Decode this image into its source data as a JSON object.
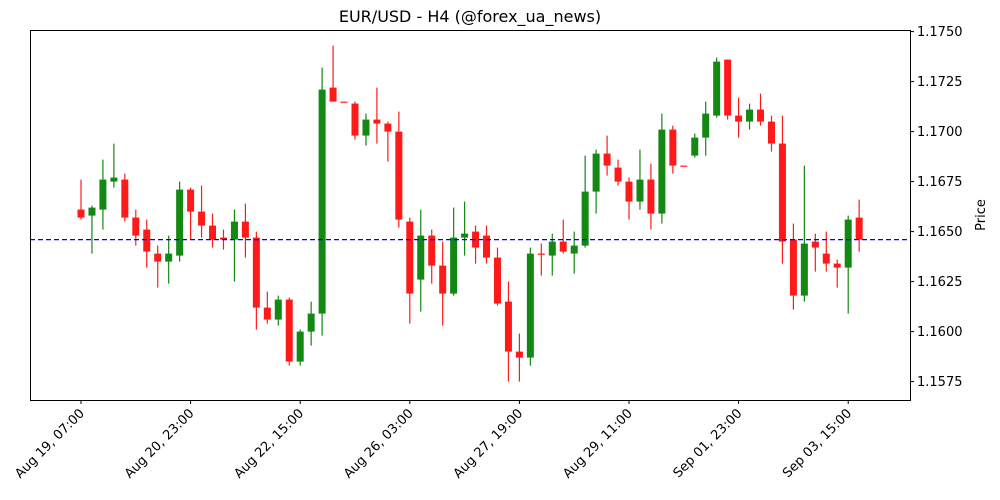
{
  "chart_data": {
    "type": "candlestick",
    "title": "EUR/USD - H4 (@forex_ua_news)",
    "xlabel": "",
    "ylabel": "Price",
    "ylim": [
      1.15658,
      1.17508
    ],
    "y_axis_position": "right",
    "y_ticks": [
      1.1575,
      1.16,
      1.1625,
      1.165,
      1.1675,
      1.17,
      1.1725,
      1.175
    ],
    "y_tick_labels": [
      "1.1575",
      "1.1600",
      "1.1625",
      "1.1650",
      "1.1675",
      "1.1700",
      "1.1725",
      "1.1750"
    ],
    "x_ticks": [
      {
        "index": 0,
        "label": "Aug 19, 07:00"
      },
      {
        "index": 10,
        "label": "Aug 20, 23:00"
      },
      {
        "index": 20,
        "label": "Aug 22, 15:00"
      },
      {
        "index": 30,
        "label": "Aug 26, 03:00"
      },
      {
        "index": 40,
        "label": "Aug 27, 19:00"
      },
      {
        "index": 50,
        "label": "Aug 29, 11:00"
      },
      {
        "index": 60,
        "label": "Sep 01, 23:00"
      },
      {
        "index": 70,
        "label": "Sep 03, 15:00"
      }
    ],
    "grid": false,
    "legend": null,
    "colors": {
      "up": "#138813",
      "down": "#ff1a1a",
      "reference_line": "#0000ff"
    },
    "reference_line": {
      "value": 1.1646,
      "style": "dashed",
      "color": "#0000ff"
    },
    "candles": [
      {
        "o": 1.1661,
        "h": 1.1676,
        "l": 1.1656,
        "c": 1.1657
      },
      {
        "o": 1.1658,
        "h": 1.1663,
        "l": 1.1639,
        "c": 1.1662
      },
      {
        "o": 1.1661,
        "h": 1.1686,
        "l": 1.1651,
        "c": 1.1676
      },
      {
        "o": 1.1675,
        "h": 1.1694,
        "l": 1.1672,
        "c": 1.1677
      },
      {
        "o": 1.1676,
        "h": 1.1679,
        "l": 1.1655,
        "c": 1.1657
      },
      {
        "o": 1.1657,
        "h": 1.1661,
        "l": 1.1643,
        "c": 1.1648
      },
      {
        "o": 1.1651,
        "h": 1.1656,
        "l": 1.1632,
        "c": 1.164
      },
      {
        "o": 1.1639,
        "h": 1.1643,
        "l": 1.1622,
        "c": 1.1635
      },
      {
        "o": 1.1635,
        "h": 1.1648,
        "l": 1.1624,
        "c": 1.1639
      },
      {
        "o": 1.1638,
        "h": 1.1675,
        "l": 1.1635,
        "c": 1.1671
      },
      {
        "o": 1.1671,
        "h": 1.1672,
        "l": 1.1646,
        "c": 1.166
      },
      {
        "o": 1.166,
        "h": 1.1673,
        "l": 1.1647,
        "c": 1.1653
      },
      {
        "o": 1.1653,
        "h": 1.1659,
        "l": 1.1642,
        "c": 1.1646
      },
      {
        "o": 1.1647,
        "h": 1.1651,
        "l": 1.1641,
        "c": 1.1646
      },
      {
        "o": 1.1646,
        "h": 1.1661,
        "l": 1.1625,
        "c": 1.1655
      },
      {
        "o": 1.1655,
        "h": 1.1664,
        "l": 1.1637,
        "c": 1.1647
      },
      {
        "o": 1.1647,
        "h": 1.165,
        "l": 1.1601,
        "c": 1.1612
      },
      {
        "o": 1.1612,
        "h": 1.162,
        "l": 1.1604,
        "c": 1.1606
      },
      {
        "o": 1.1606,
        "h": 1.1618,
        "l": 1.1603,
        "c": 1.1616
      },
      {
        "o": 1.1616,
        "h": 1.1617,
        "l": 1.1583,
        "c": 1.1585
      },
      {
        "o": 1.1585,
        "h": 1.1601,
        "l": 1.1583,
        "c": 1.16
      },
      {
        "o": 1.16,
        "h": 1.1615,
        "l": 1.1593,
        "c": 1.1609
      },
      {
        "o": 1.1609,
        "h": 1.1732,
        "l": 1.1598,
        "c": 1.1721
      },
      {
        "o": 1.1722,
        "h": 1.1743,
        "l": 1.1715,
        "c": 1.1715
      },
      {
        "o": 1.1715,
        "h": 1.1715,
        "l": 1.1715,
        "c": 1.1715
      },
      {
        "o": 1.1714,
        "h": 1.1715,
        "l": 1.1696,
        "c": 1.1698
      },
      {
        "o": 1.1698,
        "h": 1.1709,
        "l": 1.1693,
        "c": 1.1706
      },
      {
        "o": 1.1706,
        "h": 1.1722,
        "l": 1.1694,
        "c": 1.1704
      },
      {
        "o": 1.1704,
        "h": 1.1705,
        "l": 1.1685,
        "c": 1.17
      },
      {
        "o": 1.17,
        "h": 1.171,
        "l": 1.1652,
        "c": 1.1656
      },
      {
        "o": 1.1655,
        "h": 1.1657,
        "l": 1.1604,
        "c": 1.1619
      },
      {
        "o": 1.1626,
        "h": 1.1661,
        "l": 1.161,
        "c": 1.1648
      },
      {
        "o": 1.1648,
        "h": 1.1651,
        "l": 1.1624,
        "c": 1.1633
      },
      {
        "o": 1.1633,
        "h": 1.1645,
        "l": 1.1603,
        "c": 1.1619
      },
      {
        "o": 1.1619,
        "h": 1.1662,
        "l": 1.1618,
        "c": 1.1647
      },
      {
        "o": 1.1647,
        "h": 1.1665,
        "l": 1.1638,
        "c": 1.1649
      },
      {
        "o": 1.165,
        "h": 1.1653,
        "l": 1.1634,
        "c": 1.1642
      },
      {
        "o": 1.1648,
        "h": 1.1653,
        "l": 1.1634,
        "c": 1.1637
      },
      {
        "o": 1.1637,
        "h": 1.1642,
        "l": 1.1613,
        "c": 1.1614
      },
      {
        "o": 1.1615,
        "h": 1.1625,
        "l": 1.1575,
        "c": 1.159
      },
      {
        "o": 1.159,
        "h": 1.1599,
        "l": 1.1575,
        "c": 1.1587
      },
      {
        "o": 1.1587,
        "h": 1.1642,
        "l": 1.1583,
        "c": 1.1639
      },
      {
        "o": 1.1639,
        "h": 1.1644,
        "l": 1.1628,
        "c": 1.1639
      },
      {
        "o": 1.1638,
        "h": 1.1649,
        "l": 1.1628,
        "c": 1.1645
      },
      {
        "o": 1.1645,
        "h": 1.1656,
        "l": 1.1639,
        "c": 1.164
      },
      {
        "o": 1.1639,
        "h": 1.165,
        "l": 1.1629,
        "c": 1.1643
      },
      {
        "o": 1.1643,
        "h": 1.1688,
        "l": 1.1642,
        "c": 1.167
      },
      {
        "o": 1.167,
        "h": 1.1691,
        "l": 1.1659,
        "c": 1.1689
      },
      {
        "o": 1.1689,
        "h": 1.1698,
        "l": 1.1678,
        "c": 1.1683
      },
      {
        "o": 1.1682,
        "h": 1.1686,
        "l": 1.1673,
        "c": 1.1675
      },
      {
        "o": 1.1675,
        "h": 1.1677,
        "l": 1.1656,
        "c": 1.1665
      },
      {
        "o": 1.1665,
        "h": 1.1691,
        "l": 1.1661,
        "c": 1.1676
      },
      {
        "o": 1.1676,
        "h": 1.1684,
        "l": 1.1651,
        "c": 1.1659
      },
      {
        "o": 1.1659,
        "h": 1.1709,
        "l": 1.1654,
        "c": 1.1701
      },
      {
        "o": 1.1701,
        "h": 1.1703,
        "l": 1.1679,
        "c": 1.1683
      },
      {
        "o": 1.1683,
        "h": 1.1683,
        "l": 1.1683,
        "c": 1.1683
      },
      {
        "o": 1.1688,
        "h": 1.1699,
        "l": 1.1687,
        "c": 1.1697
      },
      {
        "o": 1.1697,
        "h": 1.1715,
        "l": 1.1688,
        "c": 1.1709
      },
      {
        "o": 1.1708,
        "h": 1.1737,
        "l": 1.1707,
        "c": 1.1735
      },
      {
        "o": 1.1736,
        "h": 1.1736,
        "l": 1.1706,
        "c": 1.1708
      },
      {
        "o": 1.1708,
        "h": 1.1717,
        "l": 1.1697,
        "c": 1.1705
      },
      {
        "o": 1.1705,
        "h": 1.1714,
        "l": 1.1701,
        "c": 1.1711
      },
      {
        "o": 1.1711,
        "h": 1.1719,
        "l": 1.1703,
        "c": 1.1705
      },
      {
        "o": 1.1705,
        "h": 1.1708,
        "l": 1.169,
        "c": 1.1694
      },
      {
        "o": 1.1694,
        "h": 1.1708,
        "l": 1.1634,
        "c": 1.1645
      },
      {
        "o": 1.1646,
        "h": 1.1654,
        "l": 1.1611,
        "c": 1.1618
      },
      {
        "o": 1.1618,
        "h": 1.1683,
        "l": 1.1615,
        "c": 1.1644
      },
      {
        "o": 1.1645,
        "h": 1.1649,
        "l": 1.163,
        "c": 1.1642
      },
      {
        "o": 1.1639,
        "h": 1.165,
        "l": 1.163,
        "c": 1.1634
      },
      {
        "o": 1.1634,
        "h": 1.1636,
        "l": 1.1622,
        "c": 1.1632
      },
      {
        "o": 1.1632,
        "h": 1.1658,
        "l": 1.1609,
        "c": 1.1656
      },
      {
        "o": 1.1657,
        "h": 1.1666,
        "l": 1.164,
        "c": 1.1646
      }
    ]
  }
}
